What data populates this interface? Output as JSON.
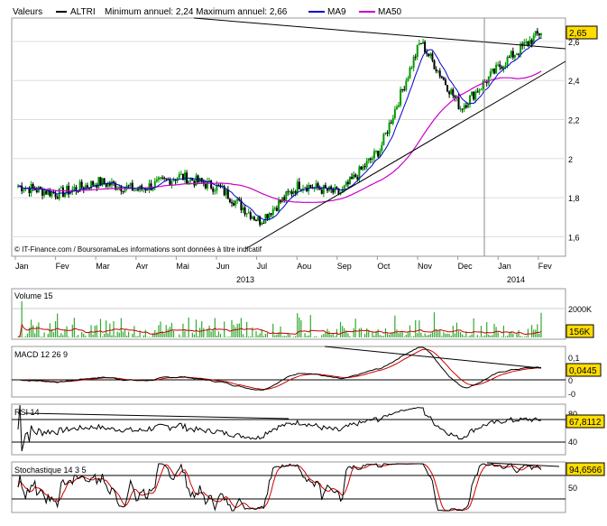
{
  "header": {
    "ticker_label": "Valeurs",
    "ticker": "ALTRI",
    "range_text": "Minimum annuel: 2,24 Maximum annuel: 2,66",
    "legend": [
      {
        "name": "MA9",
        "color": "#0000cc"
      },
      {
        "name": "MA50",
        "color": "#cc00cc"
      }
    ]
  },
  "copyright": "© IT-Finance.com / BoursoramaLes informations sont données à titre indicatif",
  "colors": {
    "candle_up": "#009900",
    "candle_down": "#000000",
    "ma9": "#0000cc",
    "ma50": "#cc00cc",
    "trendline": "#000000",
    "volume_bar": "#33aa33",
    "volume_ma": "#cc0000",
    "indicator_main": "#000000",
    "indicator_signal": "#cc0000",
    "value_badge": "#ffdd00"
  },
  "x_axis": {
    "months": [
      "Jan",
      "Fev",
      "Mar",
      "Avr",
      "Mai",
      "Jun",
      "Jul",
      "Aou",
      "Sep",
      "Oct",
      "Nov",
      "Dec",
      "Jan",
      "Fev"
    ],
    "years": [
      "2013",
      "2014"
    ]
  },
  "chart_data": [
    {
      "type": "candlestick",
      "panel": "price",
      "yticks": [
        "1,6",
        "1,8",
        "2",
        "2,2",
        "2,4",
        "2,6"
      ],
      "ylim": [
        1.5,
        2.72
      ],
      "last_value": "2,65",
      "year_min": 2.24,
      "year_max": 2.66,
      "series_names": [
        "MA9",
        "MA50"
      ],
      "x": [
        "Jan",
        "Fev",
        "Mar",
        "Avr",
        "Mai",
        "Jun",
        "Jul",
        "Aou",
        "Sep",
        "Oct",
        "Nov",
        "Dec",
        "Jan",
        "Fev"
      ],
      "close": [
        1.86,
        1.82,
        1.88,
        1.84,
        1.91,
        1.85,
        1.68,
        1.87,
        1.82,
        2.05,
        2.6,
        2.26,
        2.48,
        2.65
      ],
      "ma50": [
        1.75,
        1.82,
        1.86,
        1.87,
        1.88,
        1.87,
        1.82,
        1.84,
        1.86,
        1.93,
        2.15,
        2.4,
        2.45,
        2.44
      ]
    },
    {
      "type": "bar",
      "panel": "volume",
      "title": "Volume 15",
      "yticks": [
        "2000K"
      ],
      "last_value": "156K",
      "series_names": [
        "Volume 15"
      ]
    },
    {
      "type": "line",
      "panel": "macd",
      "title": "MACD 12 26 9",
      "yticks": [
        "0,1",
        "0",
        "-0"
      ],
      "last_value": "0,0445"
    },
    {
      "type": "line",
      "panel": "rsi",
      "title": "RSI 14",
      "yticks": [
        "80",
        "40"
      ],
      "last_value": "67,8112"
    },
    {
      "type": "line",
      "panel": "stochastic",
      "title": "Stochastique 14 3 5",
      "yticks": [
        "50"
      ],
      "last_value": "94,6566"
    }
  ]
}
